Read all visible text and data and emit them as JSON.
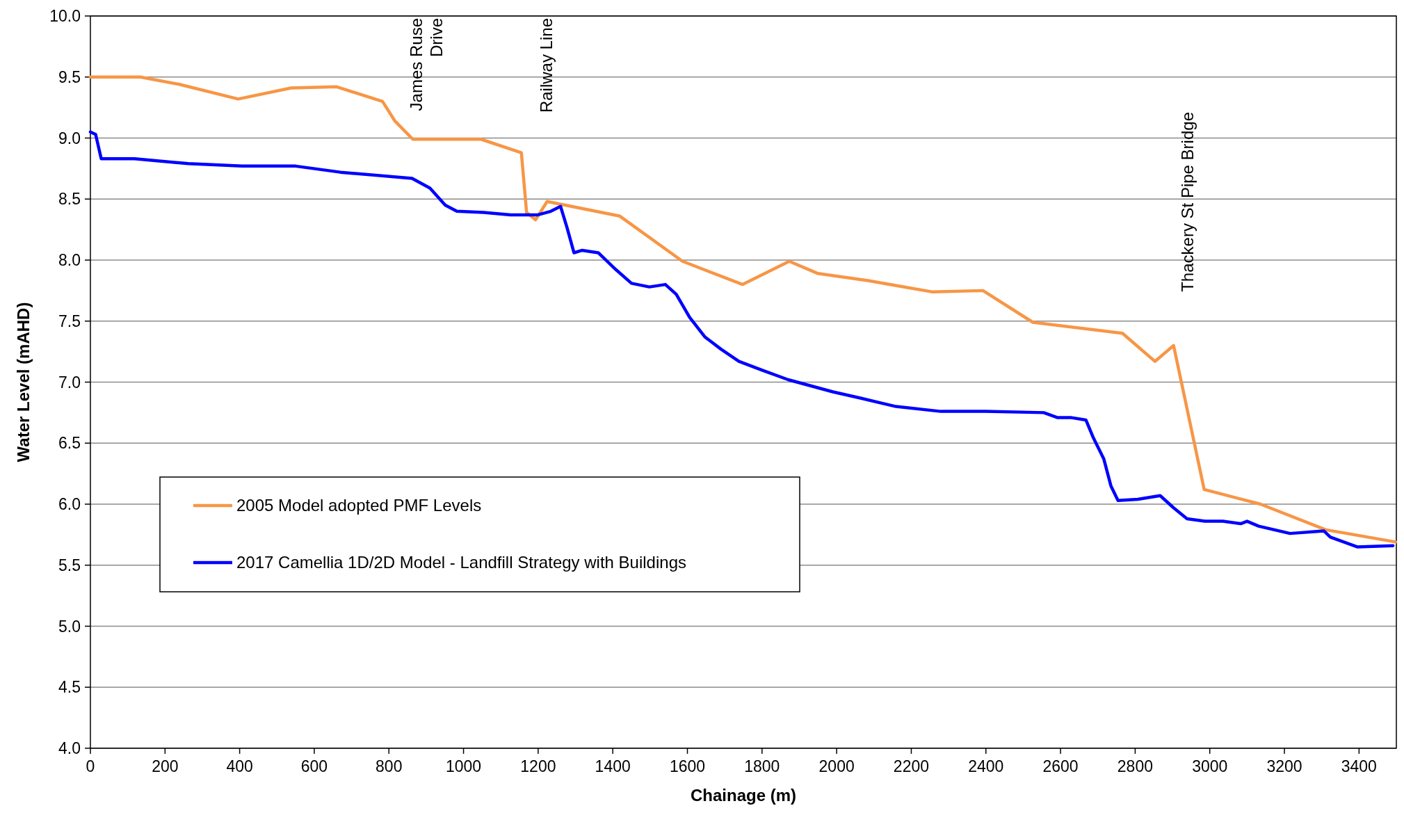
{
  "chart_data": {
    "type": "line",
    "xlabel": "Chainage (m)",
    "ylabel": "Water Level (mAHD)",
    "xlim": [
      0,
      3500
    ],
    "xticks": [
      0,
      200,
      400,
      600,
      800,
      1000,
      1200,
      1400,
      1600,
      1800,
      2000,
      2200,
      2400,
      2600,
      2800,
      3000,
      3200,
      3400
    ],
    "ylim": [
      4,
      10
    ],
    "yticks": [
      {
        "value": 4,
        "label": "4.0"
      },
      {
        "value": 4.5,
        "label": "4.5"
      },
      {
        "value": 5,
        "label": "5.0"
      },
      {
        "value": 5.5,
        "label": "5.5"
      },
      {
        "value": 6,
        "label": "6.0"
      },
      {
        "value": 6.5,
        "label": "6.5"
      },
      {
        "value": 7,
        "label": "7.0"
      },
      {
        "value": 7.5,
        "label": "7.5"
      },
      {
        "value": 8,
        "label": "8.0"
      },
      {
        "value": 8.5,
        "label": "8.5"
      },
      {
        "value": 9,
        "label": "9.0"
      },
      {
        "value": 9.5,
        "label": "9.5"
      },
      {
        "value": 10,
        "label": "10.0"
      }
    ],
    "grid": "y",
    "legend": "left",
    "marker": "none",
    "line_style": "solid",
    "annotations": [
      "James Ruse\nDrive",
      "Railway Line",
      "Thackery St Pipe Bridge"
    ],
    "series": [
      {
        "name": "2005 Model adopted PMF Levels",
        "color": "#f79646",
        "x": [
          0,
          134,
          238,
          396,
          538,
          660,
          783,
          816,
          864,
          1047,
          1155,
          1169,
          1193,
          1224,
          1419,
          1587,
          1748,
          1873,
          1950,
          2087,
          2255,
          2392,
          2526,
          2766,
          2853,
          2903,
          2985,
          3136,
          3311,
          3498
        ],
        "values": [
          9.5,
          9.5,
          9.44,
          9.32,
          9.41,
          9.42,
          9.3,
          9.14,
          8.99,
          8.99,
          8.88,
          8.39,
          8.33,
          8.48,
          8.36,
          7.99,
          7.8,
          7.99,
          7.89,
          7.83,
          7.74,
          7.75,
          7.49,
          7.4,
          7.17,
          7.3,
          6.12,
          6.0,
          5.79,
          5.69
        ]
      },
      {
        "name": "2017 Camellia 1D/2D Model - Landfill Strategy with Buildings",
        "color": "#0000ff",
        "x": [
          0,
          14,
          29,
          118,
          262,
          406,
          550,
          670,
          862,
          910,
          951,
          982,
          1054,
          1126,
          1198,
          1234,
          1260,
          1277,
          1296,
          1318,
          1361,
          1409,
          1450,
          1498,
          1541,
          1570,
          1606,
          1647,
          1690,
          1738,
          1798,
          1870,
          1990,
          2062,
          2159,
          2279,
          2399,
          2555,
          2591,
          2627,
          2668,
          2687,
          2716,
          2735,
          2754,
          2807,
          2867,
          2903,
          2939,
          2987,
          3035,
          3083,
          3100,
          3131,
          3215,
          3306,
          3323,
          3395,
          3491
        ],
        "values": [
          9.05,
          9.03,
          8.83,
          8.83,
          8.79,
          8.77,
          8.77,
          8.72,
          8.67,
          8.59,
          8.45,
          8.4,
          8.39,
          8.37,
          8.37,
          8.4,
          8.44,
          8.27,
          8.06,
          8.08,
          8.06,
          7.92,
          7.81,
          7.78,
          7.8,
          7.72,
          7.53,
          7.37,
          7.27,
          7.17,
          7.1,
          7.02,
          6.92,
          6.87,
          6.8,
          6.76,
          6.76,
          6.75,
          6.71,
          6.71,
          6.69,
          6.55,
          6.37,
          6.15,
          6.03,
          6.04,
          6.07,
          5.97,
          5.88,
          5.86,
          5.86,
          5.84,
          5.86,
          5.82,
          5.76,
          5.78,
          5.73,
          5.65,
          5.66
        ]
      }
    ]
  }
}
